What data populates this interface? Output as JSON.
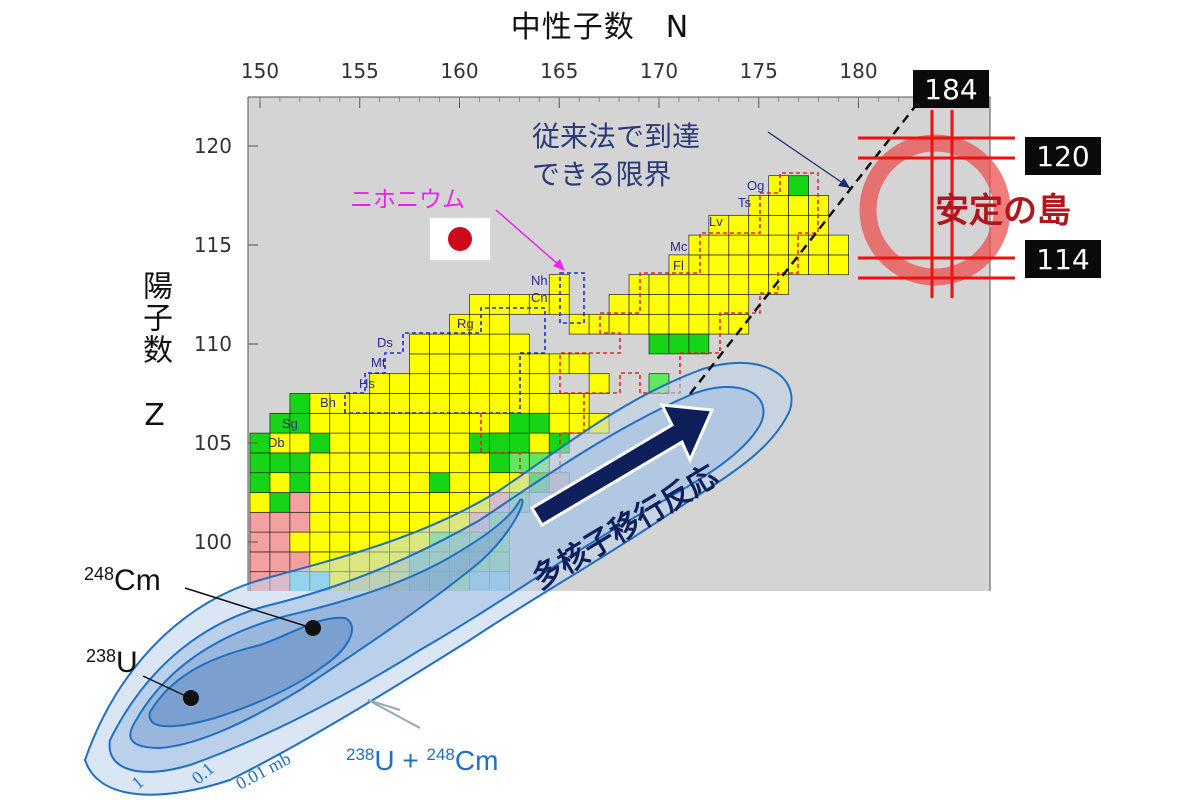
{
  "titles": {
    "x_axis": "中性子数　N",
    "y_axis": "陽子数　Z"
  },
  "axes": {
    "x_ticks": [
      "150",
      "155",
      "160",
      "165",
      "170",
      "175",
      "180"
    ],
    "y_ticks": [
      "100",
      "105",
      "110",
      "115",
      "120"
    ]
  },
  "annotations": {
    "conventional_limit": [
      "従来法で到達",
      "できる限界"
    ],
    "nihonium": "ニホニウム",
    "island_of_stability": "安定の島",
    "multinucleon_transfer": "多核子移行反応",
    "reaction": "238U + 248Cm",
    "target_cm": "248Cm",
    "target_u": "238U",
    "contour_labels": [
      "1",
      "0.1",
      "0.01 mb"
    ]
  },
  "magic_numbers": {
    "n": "184",
    "z_upper": "120",
    "z_lower": "114"
  },
  "element_labels": [
    "Db",
    "Sg",
    "Bh",
    "Hs",
    "Mt",
    "Ds",
    "Rg",
    "Cn",
    "Nh",
    "Fl",
    "Mc",
    "Lv",
    "Ts",
    "Og"
  ],
  "colors": {
    "plot_bg": "#d4d4d4",
    "known_yellow": "#ffff00",
    "known_green": "#16d416",
    "light_green": "#5fe85f",
    "pink": "#f4a0a0",
    "cyan": "#5fd6ef",
    "blue_border": "#1f2ad9",
    "red_border": "#e02626",
    "contour_blue": "#1f6fc2",
    "arrow_navy": "#0f1f5c",
    "nihonium_magenta": "#ee22ee",
    "island_red": "#ee1111",
    "island_text": "#b0161e"
  }
}
